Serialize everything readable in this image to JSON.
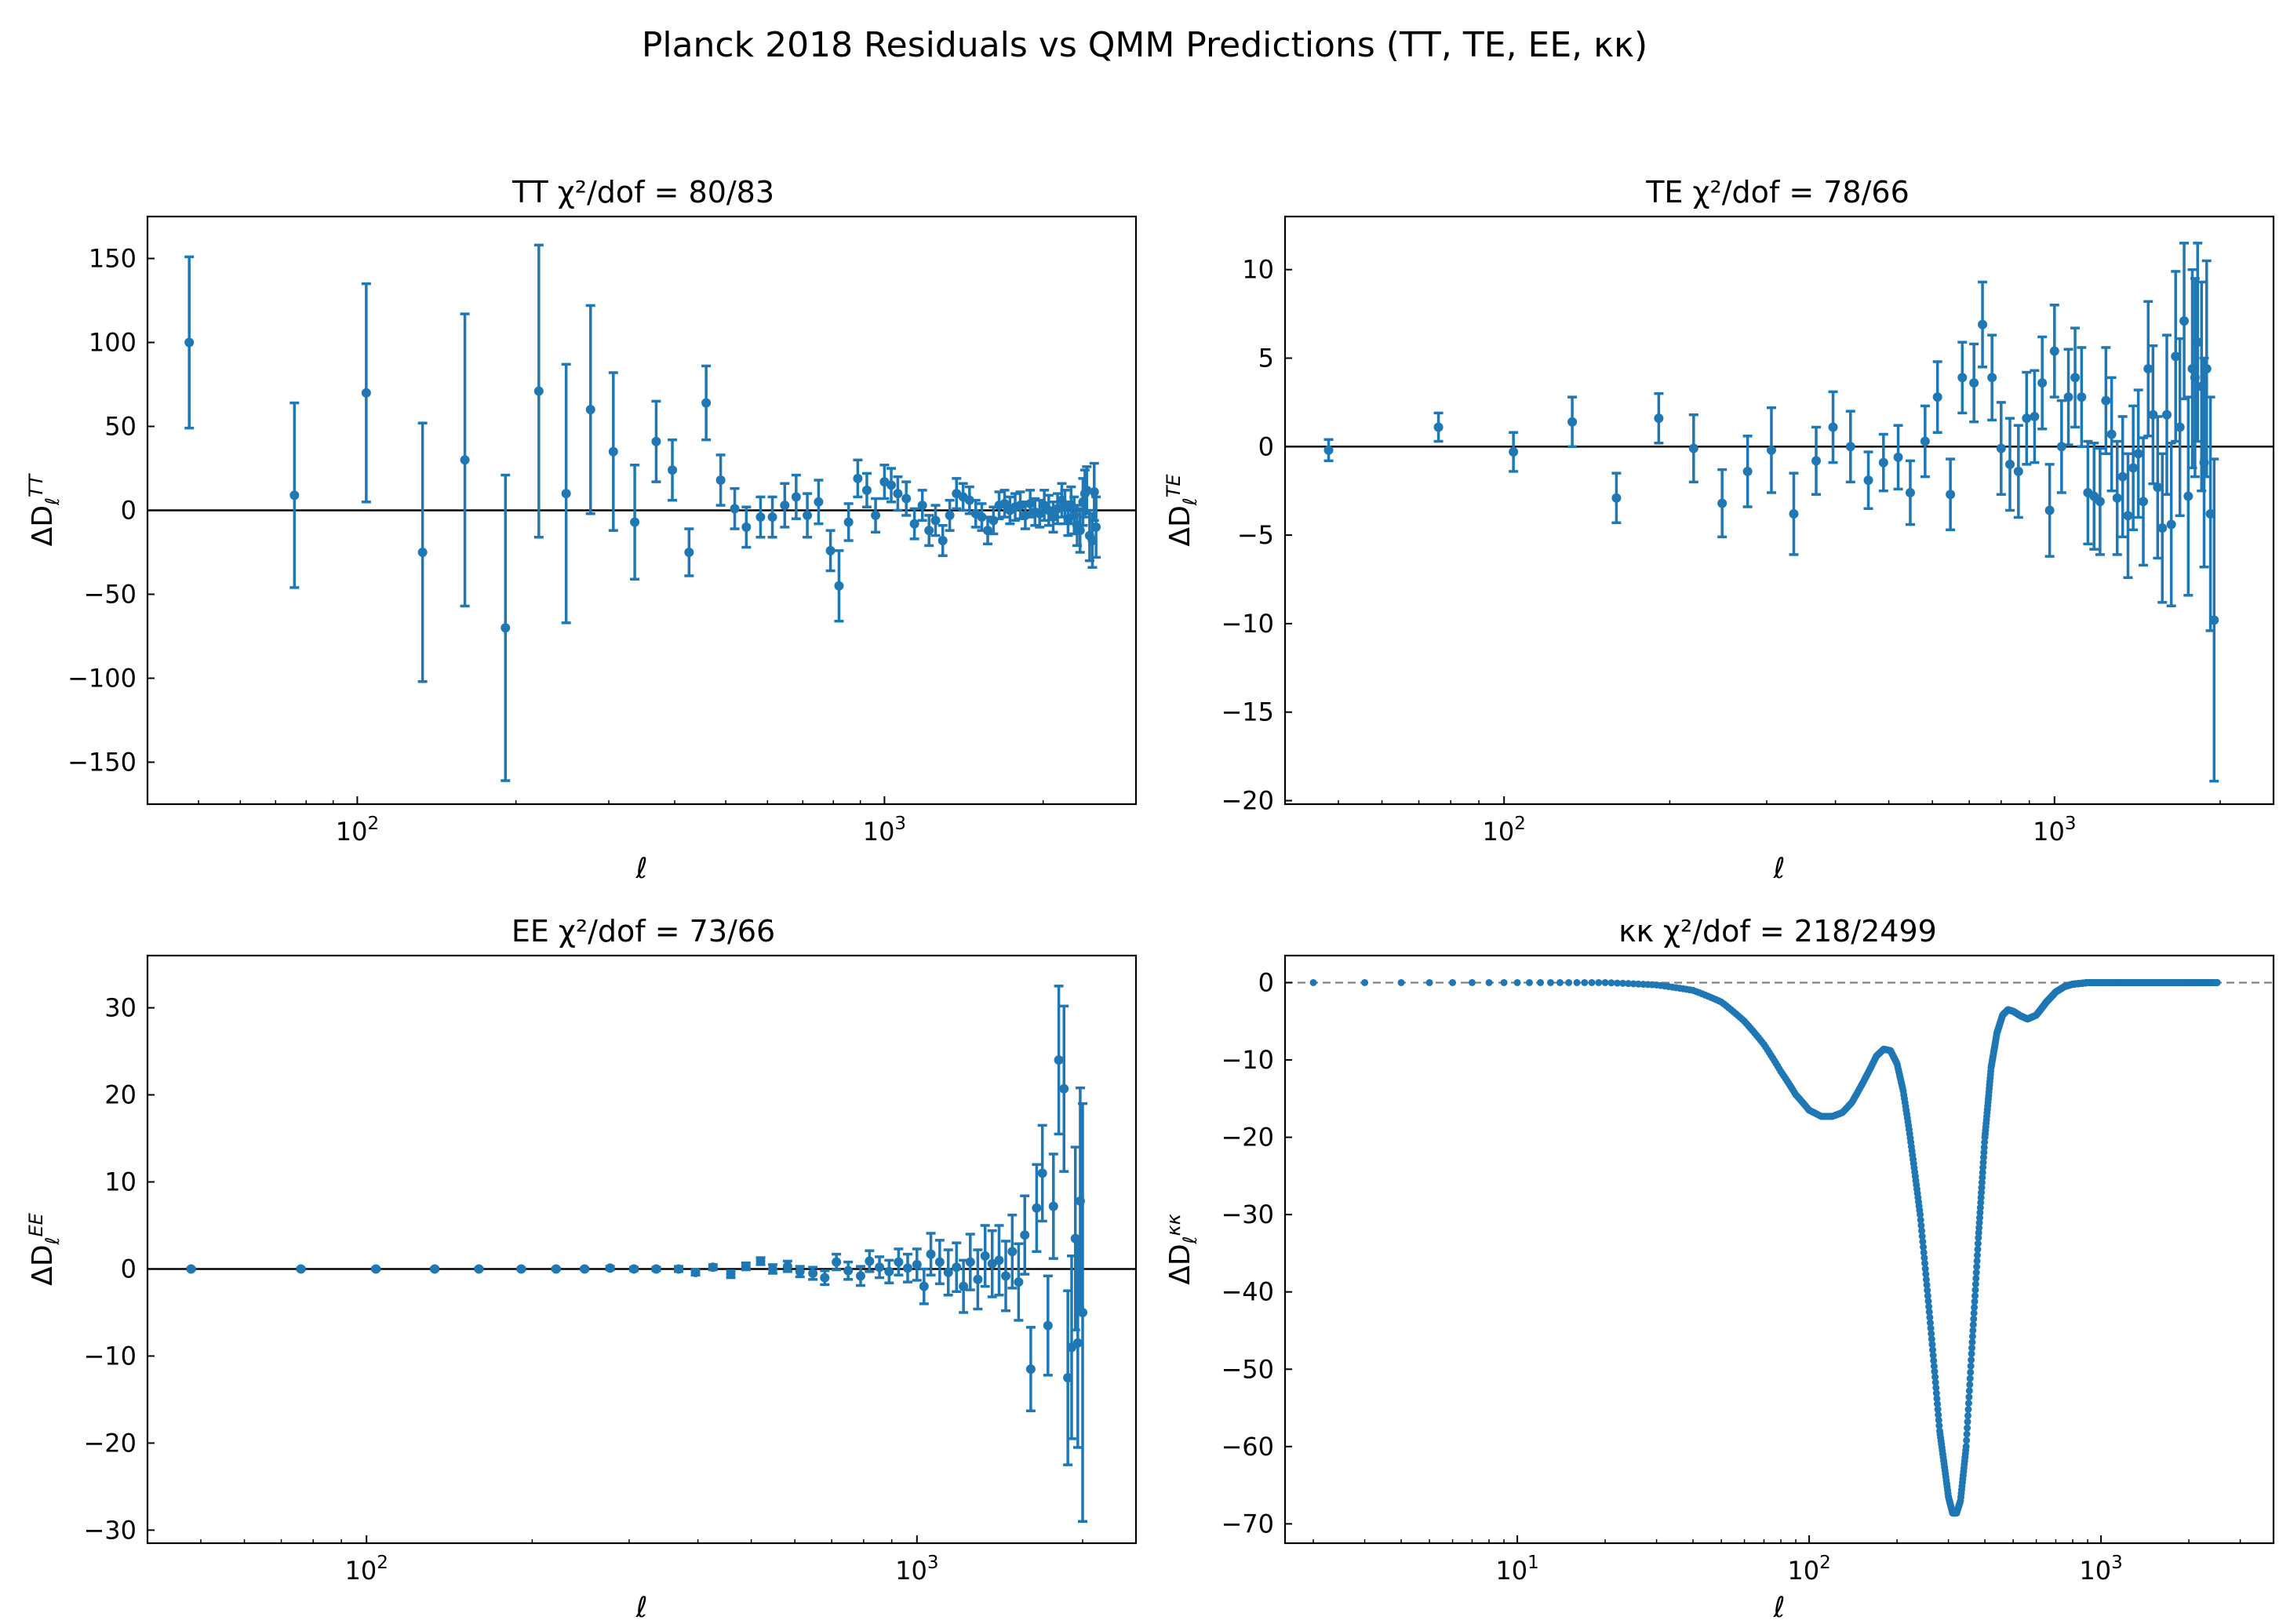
{
  "figure": {
    "title": "Planck 2018 Residuals vs QMM Predictions (TT, TE, EE, κκ)",
    "color": "#1f77b4"
  },
  "chart_data": [
    {
      "type": "errorbar",
      "title": "TT   χ²/dof = 80/83",
      "xlabel": "ℓ",
      "ylabel": "ΔD_ℓ^TT",
      "ylabel_main": "ΔD",
      "ylabel_sub": "ℓ",
      "ylabel_sup": "TT",
      "xscale": "log",
      "xlim": [
        40,
        3000
      ],
      "ylim": [
        -175,
        175
      ],
      "yticks": [
        -150,
        -100,
        -50,
        0,
        50,
        100,
        150
      ],
      "yticklabels": [
        "−150",
        "−100",
        "−50",
        "0",
        "50",
        "100",
        "150"
      ],
      "xticks": [
        100,
        1000
      ],
      "xticklabels": [
        {
          "base": "10",
          "exp": "2"
        },
        {
          "base": "10",
          "exp": "3"
        }
      ],
      "zero_line": "solid",
      "points": [
        [
          48,
          100,
          51
        ],
        [
          76,
          9,
          55
        ],
        [
          104,
          70,
          65
        ],
        [
          133,
          -25,
          77
        ],
        [
          160,
          30,
          87
        ],
        [
          191,
          -70,
          91
        ],
        [
          221,
          71,
          87
        ],
        [
          249,
          10,
          77
        ],
        [
          277,
          60,
          62
        ],
        [
          306,
          35,
          47
        ],
        [
          336,
          -7,
          34
        ],
        [
          369,
          41,
          24
        ],
        [
          396,
          24,
          18
        ],
        [
          426,
          -25,
          14
        ],
        [
          459,
          64,
          22
        ],
        [
          489,
          18,
          15
        ],
        [
          520,
          1,
          12
        ],
        [
          547,
          -10,
          12
        ],
        [
          582,
          -4,
          12
        ],
        [
          613,
          -4,
          12
        ],
        [
          647,
          3,
          13
        ],
        [
          680,
          8,
          13
        ],
        [
          714,
          -3,
          13
        ],
        [
          750,
          5,
          13
        ],
        [
          790,
          -24,
          12
        ],
        [
          820,
          -45,
          21
        ],
        [
          855,
          -7,
          11
        ],
        [
          890,
          19,
          11
        ],
        [
          926,
          12,
          10
        ],
        [
          962,
          -3,
          10
        ],
        [
          1000,
          17,
          10
        ],
        [
          1030,
          15,
          10
        ],
        [
          1060,
          10,
          10
        ],
        [
          1100,
          7,
          10
        ],
        [
          1140,
          -8,
          9
        ],
        [
          1180,
          3,
          9
        ],
        [
          1215,
          -12,
          9
        ],
        [
          1250,
          -6,
          9
        ],
        [
          1290,
          -18,
          9
        ],
        [
          1330,
          -3,
          9
        ],
        [
          1370,
          10,
          9
        ],
        [
          1410,
          8,
          8
        ],
        [
          1450,
          6,
          8
        ],
        [
          1490,
          -2,
          8
        ],
        [
          1530,
          -4,
          8
        ],
        [
          1570,
          -12,
          8
        ],
        [
          1610,
          -6,
          8
        ],
        [
          1650,
          3,
          8
        ],
        [
          1690,
          4,
          8
        ],
        [
          1730,
          0,
          8
        ],
        [
          1770,
          2,
          8
        ],
        [
          1810,
          3,
          8
        ],
        [
          1850,
          -3,
          8
        ],
        [
          1890,
          4,
          8
        ],
        [
          1930,
          -1,
          8
        ],
        [
          1970,
          -2,
          8
        ],
        [
          2010,
          3,
          9
        ],
        [
          2050,
          0,
          9
        ],
        [
          2090,
          -4,
          9
        ],
        [
          2130,
          1,
          9
        ],
        [
          2170,
          6,
          10
        ],
        [
          2200,
          2,
          10
        ],
        [
          2230,
          -5,
          10
        ],
        [
          2260,
          3,
          11
        ],
        [
          2290,
          -3,
          11
        ],
        [
          2320,
          -9,
          12
        ],
        [
          2350,
          -12,
          13
        ],
        [
          2380,
          5,
          14
        ],
        [
          2400,
          10,
          14
        ],
        [
          2420,
          12,
          14
        ],
        [
          2450,
          -15,
          15
        ],
        [
          2480,
          -18,
          16
        ],
        [
          2500,
          11,
          17
        ],
        [
          2520,
          -10,
          18
        ]
      ]
    },
    {
      "type": "errorbar",
      "title": "TE   χ²/dof = 78/66",
      "xlabel": "ℓ",
      "ylabel": "ΔD_ℓ^TE",
      "ylabel_main": "ΔD",
      "ylabel_sub": "ℓ",
      "ylabel_sup": "TE",
      "xscale": "log",
      "xlim": [
        40,
        2500
      ],
      "ylim": [
        -20.2,
        13
      ],
      "yticks": [
        -20,
        -15,
        -10,
        -5,
        0,
        5,
        10
      ],
      "yticklabels": [
        "−20",
        "−15",
        "−10",
        "−5",
        "0",
        "5",
        "10"
      ],
      "xticks": [
        100,
        1000
      ],
      "xticklabels": [
        {
          "base": "10",
          "exp": "2"
        },
        {
          "base": "10",
          "exp": "3"
        }
      ],
      "zero_line": "solid",
      "points": [
        [
          48,
          -0.2,
          0.6
        ],
        [
          76,
          1.1,
          0.8
        ],
        [
          104,
          -0.3,
          1.1
        ],
        [
          133,
          1.4,
          1.4
        ],
        [
          160,
          -2.9,
          1.4
        ],
        [
          191,
          1.6,
          1.4
        ],
        [
          221,
          -0.1,
          1.9
        ],
        [
          249,
          -3.2,
          1.9
        ],
        [
          277,
          -1.4,
          2.0
        ],
        [
          306,
          -0.2,
          2.4
        ],
        [
          336,
          -3.8,
          2.3
        ],
        [
          369,
          -0.8,
          1.9
        ],
        [
          396,
          1.1,
          2.0
        ],
        [
          426,
          0.0,
          2.0
        ],
        [
          459,
          -1.9,
          1.6
        ],
        [
          489,
          -0.9,
          1.6
        ],
        [
          520,
          -0.6,
          1.8
        ],
        [
          547,
          -2.6,
          1.8
        ],
        [
          582,
          0.3,
          2.0
        ],
        [
          613,
          2.8,
          2.0
        ],
        [
          647,
          -2.7,
          2.0
        ],
        [
          680,
          3.9,
          2.0
        ],
        [
          714,
          3.6,
          2.2
        ],
        [
          740,
          6.9,
          2.4
        ],
        [
          770,
          3.9,
          2.4
        ],
        [
          800,
          -0.1,
          2.6
        ],
        [
          830,
          -1.0,
          2.6
        ],
        [
          860,
          -1.4,
          2.6
        ],
        [
          890,
          1.6,
          2.6
        ],
        [
          920,
          1.7,
          2.6
        ],
        [
          950,
          3.6,
          2.6
        ],
        [
          980,
          -3.6,
          2.6
        ],
        [
          1000,
          5.4,
          2.6
        ],
        [
          1030,
          0.0,
          2.6
        ],
        [
          1060,
          2.8,
          2.7
        ],
        [
          1090,
          3.9,
          2.8
        ],
        [
          1120,
          2.8,
          2.8
        ],
        [
          1150,
          -2.6,
          2.9
        ],
        [
          1180,
          -2.8,
          3.0
        ],
        [
          1210,
          -3.1,
          3.0
        ],
        [
          1240,
          2.6,
          3.0
        ],
        [
          1270,
          0.7,
          3.2
        ],
        [
          1300,
          -2.9,
          3.2
        ],
        [
          1330,
          -1.7,
          3.4
        ],
        [
          1360,
          -3.9,
          3.5
        ],
        [
          1390,
          -1.2,
          3.5
        ],
        [
          1420,
          -0.4,
          3.6
        ],
        [
          1450,
          -3.1,
          3.6
        ],
        [
          1480,
          4.4,
          3.8
        ],
        [
          1510,
          1.8,
          3.9
        ],
        [
          1540,
          -2.3,
          4.0
        ],
        [
          1570,
          -4.6,
          4.2
        ],
        [
          1600,
          1.8,
          4.5
        ],
        [
          1630,
          -4.4,
          4.6
        ],
        [
          1660,
          5.1,
          4.8
        ],
        [
          1690,
          1.1,
          5.0
        ],
        [
          1720,
          7.1,
          4.4
        ],
        [
          1750,
          -2.8,
          5.6
        ],
        [
          1780,
          4.4,
          5.6
        ],
        [
          1800,
          3.9,
          5.6
        ],
        [
          1820,
          5.9,
          5.6
        ],
        [
          1850,
          3.4,
          5.9
        ],
        [
          1870,
          -0.9,
          5.9
        ],
        [
          1890,
          4.4,
          6.1
        ],
        [
          1920,
          -3.8,
          6.6
        ],
        [
          1950,
          -9.8,
          9.1
        ]
      ]
    },
    {
      "type": "errorbar",
      "title": "EE   χ²/dof = 73/66",
      "xlabel": "ℓ",
      "ylabel": "ΔD_ℓ^EE",
      "ylabel_main": "ΔD",
      "ylabel_sub": "ℓ",
      "ylabel_sup": "EE",
      "xscale": "log",
      "xlim": [
        40,
        2500
      ],
      "ylim": [
        -31.5,
        36
      ],
      "yticks": [
        -30,
        -20,
        -10,
        0,
        10,
        20,
        30
      ],
      "yticklabels": [
        "−30",
        "−20",
        "−10",
        "0",
        "10",
        "20",
        "30"
      ],
      "xticks": [
        100,
        1000
      ],
      "xticklabels": [
        {
          "base": "10",
          "exp": "2"
        },
        {
          "base": "10",
          "exp": "3"
        }
      ],
      "zero_line": "solid",
      "points": [
        [
          48,
          0.0,
          0.1
        ],
        [
          76,
          0.0,
          0.1
        ],
        [
          104,
          0.0,
          0.1
        ],
        [
          133,
          0.0,
          0.1
        ],
        [
          160,
          0.0,
          0.1
        ],
        [
          191,
          0.0,
          0.1
        ],
        [
          221,
          0.0,
          0.1
        ],
        [
          249,
          0.0,
          0.1
        ],
        [
          277,
          0.1,
          0.2
        ],
        [
          306,
          0.0,
          0.2
        ],
        [
          336,
          0.0,
          0.2
        ],
        [
          369,
          0.0,
          0.3
        ],
        [
          396,
          -0.4,
          0.3
        ],
        [
          426,
          0.2,
          0.3
        ],
        [
          459,
          -0.6,
          0.4
        ],
        [
          489,
          0.3,
          0.4
        ],
        [
          520,
          0.9,
          0.4
        ],
        [
          547,
          0.0,
          0.5
        ],
        [
          582,
          0.3,
          0.6
        ],
        [
          613,
          -0.3,
          0.6
        ],
        [
          647,
          -0.5,
          0.7
        ],
        [
          680,
          -1.0,
          0.8
        ],
        [
          714,
          0.8,
          0.9
        ],
        [
          750,
          -0.2,
          1.0
        ],
        [
          790,
          -0.8,
          1.1
        ],
        [
          820,
          0.9,
          1.2
        ],
        [
          855,
          0.2,
          1.2
        ],
        [
          890,
          -0.3,
          1.3
        ],
        [
          926,
          0.8,
          1.5
        ],
        [
          962,
          0.1,
          1.6
        ],
        [
          1000,
          0.5,
          1.8
        ],
        [
          1030,
          -2.0,
          2.0
        ],
        [
          1060,
          1.7,
          2.4
        ],
        [
          1100,
          0.8,
          2.5
        ],
        [
          1140,
          -0.4,
          2.6
        ],
        [
          1180,
          0.2,
          2.8
        ],
        [
          1215,
          -2.0,
          3.0
        ],
        [
          1250,
          0.8,
          3.2
        ],
        [
          1290,
          -1.2,
          3.4
        ],
        [
          1330,
          1.5,
          3.5
        ],
        [
          1370,
          0.6,
          3.8
        ],
        [
          1410,
          1.0,
          4.0
        ],
        [
          1450,
          -0.8,
          4.0
        ],
        [
          1490,
          2.0,
          4.2
        ],
        [
          1530,
          -1.5,
          4.4
        ],
        [
          1570,
          3.9,
          4.5
        ],
        [
          1610,
          -11.5,
          4.8
        ],
        [
          1650,
          7.0,
          5.0
        ],
        [
          1690,
          11.0,
          5.5
        ],
        [
          1730,
          -6.5,
          5.7
        ],
        [
          1770,
          7.2,
          6.0
        ],
        [
          1810,
          24.0,
          8.5
        ],
        [
          1850,
          20.7,
          9.5
        ],
        [
          1880,
          -12.5,
          10.0
        ],
        [
          1910,
          -9.0,
          10.5
        ],
        [
          1940,
          3.5,
          10.5
        ],
        [
          1960,
          -8.5,
          12.0
        ],
        [
          1980,
          7.8,
          13.0
        ],
        [
          2000,
          -5.0,
          24.0
        ]
      ]
    },
    {
      "type": "scatter",
      "title": "κκ   χ²/dof = 218/2499",
      "xlabel": "ℓ",
      "ylabel": "ΔD_ℓ^κκ",
      "ylabel_main": "ΔD",
      "ylabel_sub": "ℓ",
      "ylabel_sup": "κκ",
      "xscale": "log",
      "xlim": [
        1.6,
        3900
      ],
      "ylim": [
        -72.5,
        3.5
      ],
      "yticks": [
        -70,
        -60,
        -50,
        -40,
        -30,
        -20,
        -10,
        0
      ],
      "yticklabels": [
        "−70",
        "−60",
        "−50",
        "−40",
        "−30",
        "−20",
        "−10",
        "0"
      ],
      "xticks": [
        10,
        100,
        1000
      ],
      "xticklabels": [
        {
          "base": "10",
          "exp": "1"
        },
        {
          "base": "10",
          "exp": "2"
        },
        {
          "base": "10",
          "exp": "3"
        }
      ],
      "zero_line": "dashed",
      "ell_range": [
        2,
        2500
      ],
      "curve_knots": [
        [
          2,
          0
        ],
        [
          20,
          0
        ],
        [
          30,
          -0.3
        ],
        [
          40,
          -1.0
        ],
        [
          50,
          -2.5
        ],
        [
          60,
          -5.0
        ],
        [
          70,
          -8.0
        ],
        [
          80,
          -11.5
        ],
        [
          90,
          -14.5
        ],
        [
          100,
          -16.5
        ],
        [
          110,
          -17.3
        ],
        [
          120,
          -17.3
        ],
        [
          130,
          -16.8
        ],
        [
          140,
          -15.5
        ],
        [
          150,
          -13.5
        ],
        [
          160,
          -11.5
        ],
        [
          170,
          -9.5
        ],
        [
          180,
          -8.6
        ],
        [
          190,
          -8.8
        ],
        [
          200,
          -10.5
        ],
        [
          210,
          -14.0
        ],
        [
          220,
          -19.0
        ],
        [
          240,
          -30.0
        ],
        [
          260,
          -44.0
        ],
        [
          280,
          -58.0
        ],
        [
          300,
          -66.5
        ],
        [
          310,
          -68.6
        ],
        [
          320,
          -68.6
        ],
        [
          330,
          -67.0
        ],
        [
          345,
          -60.0
        ],
        [
          360,
          -48.0
        ],
        [
          380,
          -33.0
        ],
        [
          400,
          -20.0
        ],
        [
          420,
          -11.0
        ],
        [
          440,
          -6.5
        ],
        [
          460,
          -4.2
        ],
        [
          480,
          -3.5
        ],
        [
          500,
          -3.7
        ],
        [
          530,
          -4.3
        ],
        [
          560,
          -4.7
        ],
        [
          600,
          -4.2
        ],
        [
          650,
          -2.5
        ],
        [
          700,
          -1.2
        ],
        [
          750,
          -0.5
        ],
        [
          800,
          -0.2
        ],
        [
          900,
          0
        ],
        [
          2500,
          0
        ]
      ]
    }
  ]
}
